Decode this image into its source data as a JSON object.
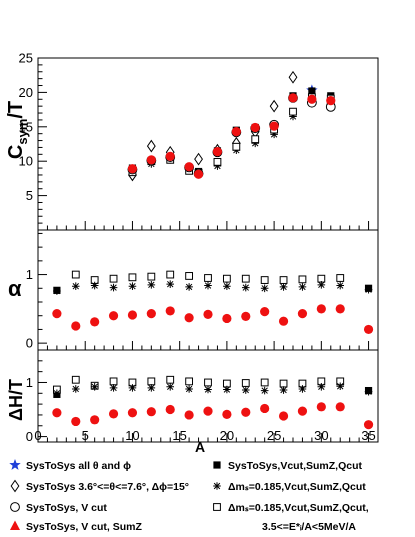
{
  "chart_data": {
    "type": "scatter",
    "x": {
      "label": "A",
      "range": [
        0,
        36
      ],
      "ticks": [
        0,
        5,
        10,
        15,
        20,
        25,
        30,
        35
      ],
      "tick_labels": [
        "0",
        "5",
        "10",
        "15",
        "20",
        "25",
        "30",
        "35"
      ]
    },
    "panels": [
      {
        "ylabel": "C_sym/T",
        "ylabel_main": "C",
        "ylabel_sub": "sym",
        "ylabel_tail": "/T",
        "ylim": [
          0,
          25
        ],
        "yticks": [
          5,
          10,
          15,
          20,
          25
        ],
        "ytick_labels": [
          "5",
          "10",
          "15",
          "20",
          "25"
        ],
        "series": [
          {
            "marker": "filled-star",
            "color": "#1f3fd8",
            "points": [
              [
                29,
                20.3
              ]
            ]
          },
          {
            "marker": "filled-square",
            "color": "#000000",
            "points": [
              [
                10,
                9.0
              ],
              [
                12,
                10.0
              ],
              [
                14,
                10.6
              ],
              [
                16,
                9.0
              ],
              [
                17,
                8.5
              ],
              [
                19,
                11.5
              ],
              [
                21,
                14.5
              ],
              [
                23,
                14.9
              ],
              [
                25,
                15.2
              ],
              [
                27,
                19.5
              ],
              [
                29,
                20.2
              ],
              [
                31,
                19.5
              ]
            ]
          },
          {
            "marker": "open-diamond",
            "color": "#000000",
            "points": [
              [
                10,
                8.0
              ],
              [
                12,
                12.2
              ],
              [
                14,
                11.3
              ],
              [
                17,
                10.3
              ],
              [
                19,
                11.6
              ],
              [
                21,
                12.6
              ],
              [
                23,
                14.3
              ],
              [
                25,
                18.0
              ],
              [
                27,
                22.2
              ],
              [
                29,
                18.8
              ],
              [
                31,
                18.3
              ]
            ]
          },
          {
            "marker": "star-cross",
            "color": "#000000",
            "points": [
              [
                10,
                8.4
              ],
              [
                12,
                9.6
              ],
              [
                14,
                10.2
              ],
              [
                16,
                8.9
              ],
              [
                17,
                8.3
              ],
              [
                19,
                9.3
              ],
              [
                21,
                11.6
              ],
              [
                23,
                12.6
              ],
              [
                25,
                13.9
              ],
              [
                27,
                16.5
              ],
              [
                29,
                19.0
              ],
              [
                31,
                18.9
              ]
            ]
          },
          {
            "marker": "open-square",
            "color": "#000000",
            "points": [
              [
                10,
                8.4
              ],
              [
                12,
                10.0
              ],
              [
                14,
                10.2
              ],
              [
                16,
                8.6
              ],
              [
                17,
                8.3
              ],
              [
                19,
                9.9
              ],
              [
                21,
                12.1
              ],
              [
                23,
                13.2
              ],
              [
                25,
                14.6
              ],
              [
                27,
                17.2
              ],
              [
                29,
                19.3
              ],
              [
                31,
                19.1
              ]
            ]
          },
          {
            "marker": "open-circle",
            "color": "#000000",
            "points": [
              [
                10,
                8.8
              ],
              [
                12,
                10.1
              ],
              [
                14,
                10.6
              ],
              [
                16,
                9.1
              ],
              [
                17,
                8.2
              ],
              [
                19,
                11.3
              ],
              [
                21,
                14.2
              ],
              [
                23,
                14.8
              ],
              [
                25,
                15.3
              ],
              [
                27,
                19.2
              ],
              [
                29,
                18.5
              ],
              [
                31,
                17.9
              ]
            ]
          },
          {
            "marker": "filled-circle",
            "color": "#ee1111",
            "points": [
              [
                10,
                8.9
              ],
              [
                12,
                10.2
              ],
              [
                14,
                10.7
              ],
              [
                16,
                9.2
              ],
              [
                17,
                8.1
              ],
              [
                19,
                11.4
              ],
              [
                21,
                14.3
              ],
              [
                23,
                14.9
              ],
              [
                25,
                15.1
              ],
              [
                27,
                19.2
              ],
              [
                29,
                19.0
              ],
              [
                31,
                18.8
              ]
            ]
          }
        ]
      },
      {
        "ylabel": "α",
        "ylim": [
          -0.1,
          1.65
        ],
        "yticks": [
          0,
          1
        ],
        "ytick_labels": [
          "0",
          "1"
        ],
        "series": [
          {
            "marker": "filled-square",
            "color": "#000000",
            "points": [
              [
                2,
                0.77
              ],
              [
                35,
                0.8
              ]
            ]
          },
          {
            "marker": "open-square",
            "color": "#000000",
            "points": [
              [
                4,
                1.0
              ],
              [
                6,
                0.92
              ],
              [
                8,
                0.94
              ],
              [
                10,
                0.96
              ],
              [
                12,
                0.97
              ],
              [
                14,
                1.0
              ],
              [
                16,
                0.98
              ],
              [
                18,
                0.95
              ],
              [
                20,
                0.94
              ],
              [
                22,
                0.94
              ],
              [
                24,
                0.92
              ],
              [
                26,
                0.92
              ],
              [
                28,
                0.93
              ],
              [
                30,
                0.94
              ],
              [
                32,
                0.95
              ]
            ]
          },
          {
            "marker": "star-cross",
            "color": "#000000",
            "points": [
              [
                2,
                0.76
              ],
              [
                4,
                0.83
              ],
              [
                6,
                0.84
              ],
              [
                8,
                0.81
              ],
              [
                10,
                0.83
              ],
              [
                12,
                0.85
              ],
              [
                14,
                0.86
              ],
              [
                16,
                0.82
              ],
              [
                18,
                0.84
              ],
              [
                20,
                0.83
              ],
              [
                22,
                0.81
              ],
              [
                24,
                0.8
              ],
              [
                26,
                0.82
              ],
              [
                28,
                0.82
              ],
              [
                30,
                0.85
              ],
              [
                32,
                0.84
              ],
              [
                35,
                0.78
              ]
            ]
          },
          {
            "marker": "filled-circle",
            "color": "#ee1111",
            "points": [
              [
                2,
                0.43
              ],
              [
                4,
                0.25
              ],
              [
                6,
                0.31
              ],
              [
                8,
                0.4
              ],
              [
                10,
                0.41
              ],
              [
                12,
                0.43
              ],
              [
                14,
                0.47
              ],
              [
                16,
                0.37
              ],
              [
                18,
                0.42
              ],
              [
                20,
                0.36
              ],
              [
                22,
                0.39
              ],
              [
                24,
                0.46
              ],
              [
                26,
                0.32
              ],
              [
                28,
                0.43
              ],
              [
                30,
                0.5
              ],
              [
                32,
                0.5
              ],
              [
                35,
                0.2
              ]
            ]
          }
        ]
      },
      {
        "ylabel": "ΔH/T",
        "ylim": [
          -0.1,
          1.6
        ],
        "yticks": [
          0,
          1
        ],
        "ytick_labels": [
          "0",
          "1"
        ],
        "series": [
          {
            "marker": "filled-square",
            "color": "#000000",
            "points": [
              [
                2,
                0.78
              ],
              [
                35,
                0.85
              ]
            ]
          },
          {
            "marker": "open-square",
            "color": "#000000",
            "points": [
              [
                2,
                0.87
              ],
              [
                4,
                1.05
              ],
              [
                6,
                0.94
              ],
              [
                8,
                1.02
              ],
              [
                10,
                1.0
              ],
              [
                12,
                1.02
              ],
              [
                14,
                1.05
              ],
              [
                16,
                1.02
              ],
              [
                18,
                1.0
              ],
              [
                20,
                0.98
              ],
              [
                22,
                0.99
              ],
              [
                24,
                1.0
              ],
              [
                26,
                0.98
              ],
              [
                28,
                0.98
              ],
              [
                30,
                1.02
              ],
              [
                32,
                1.02
              ]
            ]
          },
          {
            "marker": "star-cross",
            "color": "#000000",
            "points": [
              [
                2,
                0.8
              ],
              [
                4,
                0.88
              ],
              [
                6,
                0.92
              ],
              [
                8,
                0.9
              ],
              [
                10,
                0.9
              ],
              [
                12,
                0.9
              ],
              [
                14,
                0.92
              ],
              [
                16,
                0.88
              ],
              [
                18,
                0.87
              ],
              [
                20,
                0.87
              ],
              [
                22,
                0.86
              ],
              [
                24,
                0.85
              ],
              [
                26,
                0.86
              ],
              [
                28,
                0.88
              ],
              [
                30,
                0.92
              ],
              [
                32,
                0.93
              ],
              [
                35,
                0.83
              ]
            ]
          },
          {
            "marker": "filled-circle",
            "color": "#ee1111",
            "points": [
              [
                2,
                0.44
              ],
              [
                4,
                0.28
              ],
              [
                6,
                0.31
              ],
              [
                8,
                0.42
              ],
              [
                10,
                0.44
              ],
              [
                12,
                0.46
              ],
              [
                14,
                0.5
              ],
              [
                16,
                0.4
              ],
              [
                18,
                0.47
              ],
              [
                20,
                0.41
              ],
              [
                22,
                0.45
              ],
              [
                24,
                0.52
              ],
              [
                26,
                0.38
              ],
              [
                28,
                0.47
              ],
              [
                30,
                0.55
              ],
              [
                32,
                0.55
              ],
              [
                35,
                0.22
              ]
            ]
          }
        ]
      }
    ],
    "legend": [
      {
        "marker": "filled-star",
        "color": "#1f3fd8",
        "label": "SysToSys all θ and ϕ"
      },
      {
        "marker": "filled-square",
        "color": "#000000",
        "label": "SysToSys,Vcut,SumZ,Qcut"
      },
      {
        "marker": "open-diamond",
        "color": "#000000",
        "label": "SysToSys 3.6°<=θ<=7.6°, Δϕ=15°"
      },
      {
        "marker": "star-cross",
        "color": "#000000",
        "label": "Δmₛ=0.185,Vcut,SumZ,Qcut"
      },
      {
        "marker": "open-circle",
        "color": "#000000",
        "label": "SysToSys, V cut"
      },
      {
        "marker": "open-square",
        "color": "#000000",
        "label": "Δmₛ=0.185,Vcut,SumZ,Qcut,"
      },
      {
        "marker": "filled-triangle",
        "color": "#ee1111",
        "label": "SysToSys, V cut, SumZ"
      },
      {
        "marker": "none",
        "color": "#000000",
        "label": "3.5<=E*ᵢ/A<5MeV/A"
      }
    ]
  }
}
